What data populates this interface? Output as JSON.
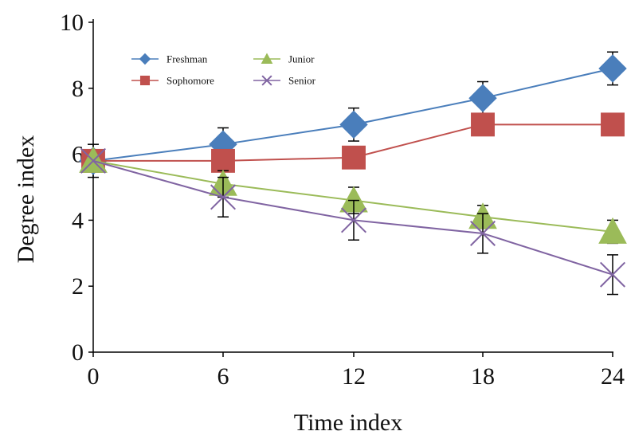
{
  "chart_data": {
    "type": "line",
    "title": "",
    "xlabel": "Time index",
    "ylabel": "Degree index",
    "x": [
      0,
      6,
      12,
      18,
      24
    ],
    "xticks": [
      "0",
      "6",
      "12",
      "18",
      "24"
    ],
    "yticks": [
      "0",
      "2",
      "4",
      "6",
      "8",
      "10"
    ],
    "ylim": [
      0,
      10
    ],
    "grid": false,
    "legend_position": "top-left",
    "series": [
      {
        "name": "Freshman",
        "color": "#4a7ebb",
        "marker": "diamond",
        "values": [
          5.8,
          6.3,
          6.9,
          7.7,
          8.6
        ],
        "errors": [
          0.5,
          0.5,
          0.5,
          0.5,
          0.5
        ]
      },
      {
        "name": "Sophomore",
        "color": "#c0504d",
        "marker": "square",
        "values": [
          5.8,
          5.8,
          5.9,
          6.9,
          6.9
        ],
        "errors": [
          0,
          0,
          0,
          0,
          0
        ]
      },
      {
        "name": "Junior",
        "color": "#9bbb59",
        "marker": "triangle",
        "values": [
          5.8,
          5.1,
          4.6,
          4.1,
          3.65
        ],
        "errors": [
          0,
          0.4,
          0.4,
          0.35,
          0.35
        ]
      },
      {
        "name": "Senior",
        "color": "#8064a2",
        "marker": "x",
        "values": [
          5.8,
          4.7,
          4.0,
          3.6,
          2.35
        ],
        "errors": [
          0,
          0.6,
          0.6,
          0.6,
          0.6
        ]
      }
    ]
  }
}
